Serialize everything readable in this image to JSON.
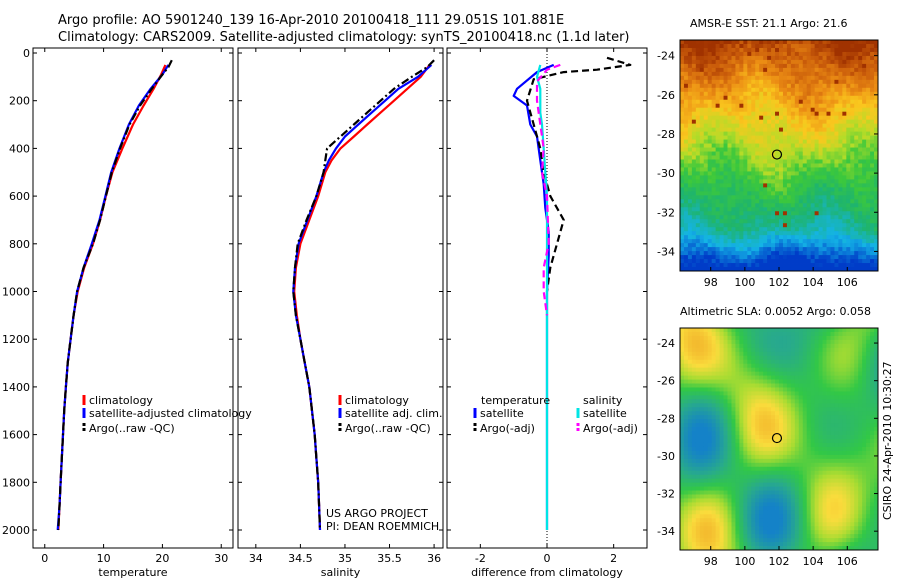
{
  "header": {
    "line1": "Argo profile: AO 5901240_139 16-Apr-2010 20100418_111 29.051S 101.881E",
    "line2": "Climatology: CARS2009. Satellite-adjusted climatology: synTS_20100418.nc (1.1d later)"
  },
  "credits": {
    "line1": "US ARGO PROJECT",
    "line2": "PI: DEAN ROEMMICH"
  },
  "stamp": "CSIRO 24-Apr-2010 10:30:27",
  "colors": {
    "climatology": "#ff0000",
    "satellite": "#0000ff",
    "argo": "#000000",
    "sal_satellite": "#00e5e5",
    "sal_argo": "#ff00ff"
  },
  "chart_data": [
    {
      "type": "line",
      "panel": "temperature",
      "xlabel": "temperature",
      "ylabel": "",
      "xlim": [
        -2,
        32
      ],
      "ylim": [
        2050,
        0
      ],
      "xticks": [
        "0",
        "10",
        "20",
        "30"
      ],
      "xtick_values": [
        0,
        10,
        20,
        30
      ],
      "yticks": [
        "0",
        "200",
        "400",
        "600",
        "800",
        "1000",
        "1200",
        "1400",
        "1600",
        "1800",
        "2000"
      ],
      "ytick_values": [
        0,
        200,
        400,
        600,
        800,
        1000,
        1200,
        1400,
        1600,
        1800,
        2000
      ],
      "legend": [
        "climatology",
        "satellite-adjusted climatology",
        "Argo(..raw -QC)"
      ],
      "series": [
        {
          "name": "climatology",
          "color": "#ff0000",
          "dash": "solid",
          "points": [
            [
              20.5,
              50
            ],
            [
              19.8,
              90
            ],
            [
              18.5,
              150
            ],
            [
              16.8,
              220
            ],
            [
              15.0,
              300
            ],
            [
              13.2,
              400
            ],
            [
              11.5,
              500
            ],
            [
              10.4,
              600
            ],
            [
              9.4,
              700
            ],
            [
              8.2,
              800
            ],
            [
              6.7,
              900
            ],
            [
              5.6,
              1000
            ],
            [
              4.9,
              1100
            ],
            [
              4.4,
              1200
            ],
            [
              3.9,
              1300
            ],
            [
              3.6,
              1400
            ],
            [
              3.3,
              1500
            ],
            [
              3.1,
              1600
            ],
            [
              2.9,
              1700
            ],
            [
              2.7,
              1800
            ],
            [
              2.5,
              1900
            ],
            [
              2.3,
              2000
            ]
          ]
        },
        {
          "name": "satellite-adjusted climatology",
          "color": "#0000ff",
          "dash": "solid",
          "points": [
            [
              21.0,
              50
            ],
            [
              20.0,
              90
            ],
            [
              18.0,
              150
            ],
            [
              16.0,
              220
            ],
            [
              14.3,
              300
            ],
            [
              12.7,
              400
            ],
            [
              11.3,
              500
            ],
            [
              10.3,
              600
            ],
            [
              9.3,
              700
            ],
            [
              8.0,
              800
            ],
            [
              6.6,
              900
            ],
            [
              5.5,
              1000
            ],
            [
              4.9,
              1100
            ],
            [
              4.4,
              1200
            ],
            [
              3.9,
              1300
            ],
            [
              3.6,
              1400
            ],
            [
              3.3,
              1500
            ],
            [
              3.1,
              1600
            ],
            [
              2.9,
              1700
            ],
            [
              2.7,
              1800
            ],
            [
              2.5,
              1900
            ],
            [
              2.2,
              2000
            ]
          ]
        },
        {
          "name": "Argo(..raw -QC)",
          "color": "#000000",
          "dash": "dashdot",
          "points": [
            [
              21.6,
              30
            ],
            [
              21.0,
              60
            ],
            [
              20.0,
              90
            ],
            [
              18.2,
              150
            ],
            [
              16.2,
              220
            ],
            [
              14.4,
              300
            ],
            [
              12.8,
              400
            ],
            [
              11.4,
              500
            ],
            [
              10.4,
              600
            ],
            [
              9.4,
              700
            ],
            [
              8.2,
              800
            ],
            [
              6.6,
              900
            ],
            [
              5.5,
              1000
            ],
            [
              4.9,
              1100
            ],
            [
              4.4,
              1200
            ],
            [
              3.9,
              1300
            ],
            [
              3.6,
              1400
            ],
            [
              3.3,
              1500
            ],
            [
              3.1,
              1600
            ],
            [
              2.9,
              1700
            ],
            [
              2.7,
              1800
            ],
            [
              2.5,
              1900
            ],
            [
              2.3,
              2000
            ]
          ]
        }
      ]
    },
    {
      "type": "line",
      "panel": "salinity",
      "xlabel": "salinity",
      "xlim": [
        33.8,
        36.1
      ],
      "ylim": [
        2050,
        0
      ],
      "xticks": [
        "34",
        "34.5",
        "35",
        "35.5",
        "36"
      ],
      "xtick_values": [
        34,
        34.5,
        35,
        35.5,
        36
      ],
      "legend": [
        "climatology",
        "satellite adj. clim.",
        "Argo(..raw -QC)"
      ],
      "series": [
        {
          "name": "climatology",
          "color": "#ff0000",
          "dash": "solid",
          "points": [
            [
              35.95,
              50
            ],
            [
              35.85,
              100
            ],
            [
              35.7,
              150
            ],
            [
              35.55,
              200
            ],
            [
              35.4,
              250
            ],
            [
              35.25,
              300
            ],
            [
              35.1,
              350
            ],
            [
              34.95,
              400
            ],
            [
              34.85,
              450
            ],
            [
              34.78,
              500
            ],
            [
              34.7,
              600
            ],
            [
              34.6,
              700
            ],
            [
              34.5,
              800
            ],
            [
              34.45,
              900
            ],
            [
              34.43,
              1000
            ],
            [
              34.46,
              1100
            ],
            [
              34.5,
              1200
            ],
            [
              34.55,
              1300
            ],
            [
              34.6,
              1400
            ],
            [
              34.63,
              1500
            ],
            [
              34.66,
              1600
            ],
            [
              34.68,
              1700
            ],
            [
              34.7,
              1800
            ],
            [
              34.71,
              1900
            ],
            [
              34.72,
              2000
            ]
          ]
        },
        {
          "name": "satellite adj. clim.",
          "color": "#0000ff",
          "dash": "solid",
          "points": [
            [
              35.97,
              50
            ],
            [
              35.82,
              100
            ],
            [
              35.6,
              150
            ],
            [
              35.45,
              200
            ],
            [
              35.3,
              250
            ],
            [
              35.15,
              300
            ],
            [
              35.0,
              350
            ],
            [
              34.9,
              400
            ],
            [
              34.82,
              450
            ],
            [
              34.76,
              500
            ],
            [
              34.68,
              600
            ],
            [
              34.58,
              700
            ],
            [
              34.48,
              800
            ],
            [
              34.44,
              900
            ],
            [
              34.42,
              1000
            ],
            [
              34.45,
              1100
            ],
            [
              34.5,
              1200
            ],
            [
              34.55,
              1300
            ],
            [
              34.6,
              1400
            ],
            [
              34.63,
              1500
            ],
            [
              34.66,
              1600
            ],
            [
              34.68,
              1700
            ],
            [
              34.7,
              1800
            ],
            [
              34.71,
              1900
            ],
            [
              34.72,
              2000
            ]
          ]
        },
        {
          "name": "Argo(..raw -QC)",
          "color": "#000000",
          "dash": "dashdot",
          "points": [
            [
              36.0,
              30
            ],
            [
              35.92,
              60
            ],
            [
              35.75,
              100
            ],
            [
              35.55,
              150
            ],
            [
              35.4,
              200
            ],
            [
              35.25,
              250
            ],
            [
              35.1,
              300
            ],
            [
              34.95,
              350
            ],
            [
              34.8,
              400
            ],
            [
              34.78,
              450
            ],
            [
              34.76,
              500
            ],
            [
              34.68,
              600
            ],
            [
              34.57,
              700
            ],
            [
              34.47,
              800
            ],
            [
              34.44,
              900
            ],
            [
              34.42,
              1000
            ],
            [
              34.45,
              1100
            ],
            [
              34.5,
              1200
            ],
            [
              34.55,
              1300
            ],
            [
              34.6,
              1400
            ],
            [
              34.63,
              1500
            ],
            [
              34.66,
              1600
            ],
            [
              34.68,
              1700
            ],
            [
              34.7,
              1800
            ],
            [
              34.71,
              1900
            ],
            [
              34.72,
              2000
            ]
          ]
        }
      ]
    },
    {
      "type": "line",
      "panel": "difference",
      "xlabel": "difference from climatology",
      "xlim": [
        -3,
        3
      ],
      "ylim": [
        2050,
        0
      ],
      "xticks": [
        "-2",
        "0",
        "2"
      ],
      "xtick_values": [
        -2,
        0,
        2
      ],
      "legend_temperature_header": "temperature",
      "legend_salinity_header": "salinity",
      "legend": [
        "satellite",
        "Argo(-adj)",
        "satellite",
        "Argo(-adj)"
      ],
      "series": [
        {
          "name": "temperature satellite",
          "color": "#0000ff",
          "dash": "solid",
          "points": [
            [
              0.2,
              50
            ],
            [
              -0.3,
              80
            ],
            [
              -0.9,
              150
            ],
            [
              -1.0,
              180
            ],
            [
              -0.6,
              220
            ],
            [
              -0.5,
              300
            ],
            [
              -0.3,
              350
            ],
            [
              -0.2,
              450
            ],
            [
              -0.1,
              550
            ],
            [
              -0.05,
              650
            ],
            [
              0.05,
              750
            ],
            [
              0.05,
              850
            ],
            [
              0.0,
              1000
            ],
            [
              0.0,
              1500
            ],
            [
              0.0,
              2000
            ]
          ]
        },
        {
          "name": "temperature Argo(-adj)",
          "color": "#000000",
          "dash": "dashed",
          "points": [
            [
              1.8,
              20
            ],
            [
              2.5,
              50
            ],
            [
              1.5,
              70
            ],
            [
              0.5,
              80
            ],
            [
              -0.4,
              110
            ],
            [
              -0.6,
              200
            ],
            [
              -0.4,
              300
            ],
            [
              -0.2,
              400
            ],
            [
              -0.1,
              500
            ],
            [
              0.1,
              600
            ],
            [
              0.5,
              700
            ],
            [
              0.3,
              800
            ],
            [
              0.1,
              900
            ],
            [
              0.0,
              1000
            ]
          ]
        },
        {
          "name": "salinity satellite",
          "color": "#00e5e5",
          "dash": "solid",
          "points": [
            [
              -0.2,
              50
            ],
            [
              -0.3,
              100
            ],
            [
              -0.2,
              150
            ],
            [
              -0.2,
              250
            ],
            [
              -0.15,
              300
            ],
            [
              -0.1,
              400
            ],
            [
              -0.05,
              500
            ],
            [
              0.0,
              600
            ],
            [
              0.0,
              1000
            ],
            [
              0.0,
              1500
            ],
            [
              0.0,
              2000
            ]
          ]
        },
        {
          "name": "salinity Argo(-adj)",
          "color": "#ff00ff",
          "dash": "dashed",
          "points": [
            [
              0.4,
              50
            ],
            [
              0.0,
              70
            ],
            [
              -0.3,
              120
            ],
            [
              -0.3,
              200
            ],
            [
              -0.1,
              400
            ],
            [
              -0.15,
              500
            ],
            [
              0.0,
              600
            ],
            [
              0.05,
              800
            ],
            [
              -0.1,
              900
            ],
            [
              -0.1,
              1000
            ],
            [
              0.0,
              1100
            ]
          ]
        }
      ]
    },
    {
      "type": "heatmap",
      "panel": "sst_map",
      "title": "AMSR-E SST: 21.1 Argo: 21.6",
      "xlim": [
        96.2,
        107.8
      ],
      "ylim": [
        -35,
        -23.2
      ],
      "xticks": [
        "98",
        "100",
        "102",
        "104",
        "106"
      ],
      "xtick_values": [
        98,
        100,
        102,
        104,
        106
      ],
      "yticks": [
        "-24",
        "-26",
        "-28",
        "-30",
        "-32",
        "-34"
      ],
      "ytick_values": [
        -24,
        -26,
        -28,
        -30,
        -32,
        -34
      ],
      "profile_location": {
        "lon": 101.881,
        "lat": -29.051
      }
    },
    {
      "type": "heatmap",
      "panel": "sla_map",
      "title": "Altimetric SLA: 0.0052 Argo: 0.058",
      "xlim": [
        96.2,
        107.8
      ],
      "ylim": [
        -35,
        -23.2
      ],
      "xticks": [
        "98",
        "100",
        "102",
        "104",
        "106"
      ],
      "xtick_values": [
        98,
        100,
        102,
        104,
        106
      ],
      "yticks": [
        "-24",
        "-26",
        "-28",
        "-30",
        "-32",
        "-34"
      ],
      "ytick_values": [
        -24,
        -26,
        -28,
        -30,
        -32,
        -34
      ],
      "profile_location": {
        "lon": 101.881,
        "lat": -29.051
      }
    }
  ]
}
